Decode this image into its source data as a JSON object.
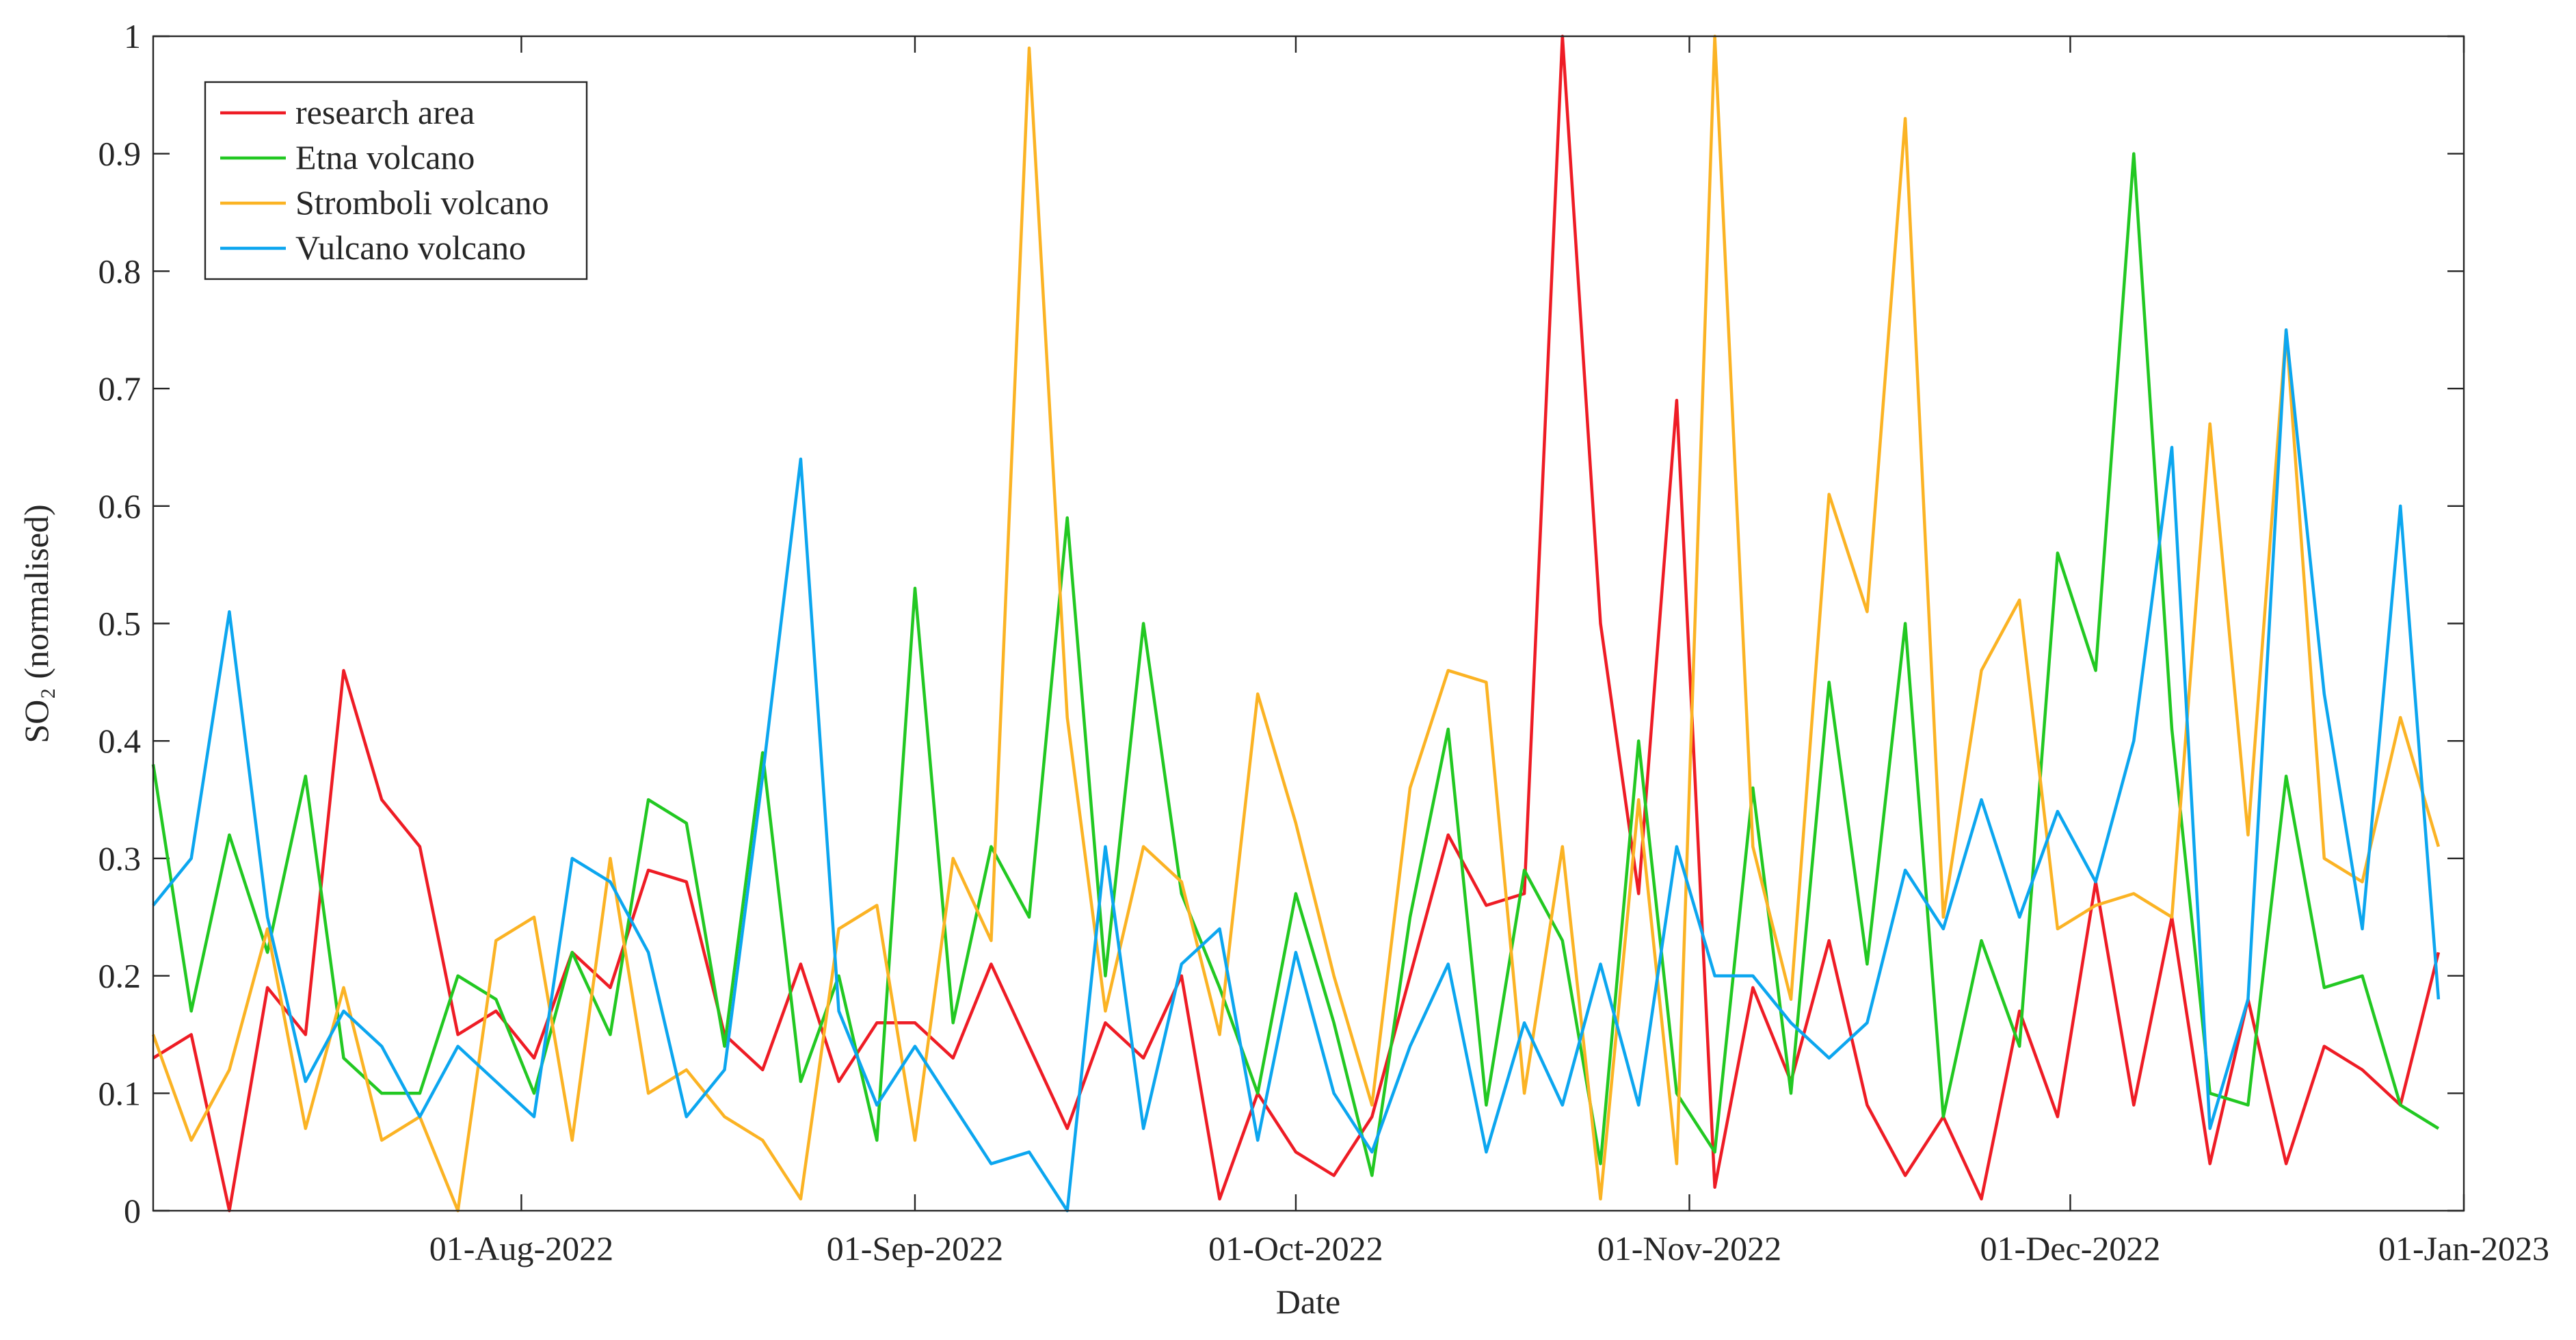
{
  "chart_data": {
    "type": "line",
    "xlabel": "Date",
    "ylabel": "SO₂ (normalised)",
    "x": [
      "2022-07-03",
      "2022-07-06",
      "2022-07-09",
      "2022-07-12",
      "2022-07-15",
      "2022-07-18",
      "2022-07-21",
      "2022-07-24",
      "2022-07-27",
      "2022-07-30",
      "2022-08-02",
      "2022-08-05",
      "2022-08-08",
      "2022-08-11",
      "2022-08-14",
      "2022-08-17",
      "2022-08-20",
      "2022-08-23",
      "2022-08-26",
      "2022-08-29",
      "2022-09-01",
      "2022-09-04",
      "2022-09-07",
      "2022-09-10",
      "2022-09-13",
      "2022-09-16",
      "2022-09-19",
      "2022-09-22",
      "2022-09-25",
      "2022-09-28",
      "2022-10-01",
      "2022-10-04",
      "2022-10-07",
      "2022-10-10",
      "2022-10-13",
      "2022-10-16",
      "2022-10-19",
      "2022-10-22",
      "2022-10-25",
      "2022-10-28",
      "2022-10-31",
      "2022-11-03",
      "2022-11-06",
      "2022-11-09",
      "2022-11-12",
      "2022-11-15",
      "2022-11-18",
      "2022-11-21",
      "2022-11-24",
      "2022-11-27",
      "2022-11-30",
      "2022-12-03",
      "2022-12-06",
      "2022-12-09",
      "2022-12-12",
      "2022-12-15",
      "2022-12-18",
      "2022-12-21",
      "2022-12-24",
      "2022-12-27",
      "2022-12-30"
    ],
    "series": [
      {
        "name": "research area",
        "color": "#ee1c25",
        "values": [
          0.13,
          0.15,
          0.0,
          0.19,
          0.15,
          0.46,
          0.35,
          0.31,
          0.15,
          0.17,
          0.13,
          0.22,
          0.19,
          0.29,
          0.28,
          0.15,
          0.12,
          0.21,
          0.11,
          0.16,
          0.16,
          0.13,
          0.21,
          0.14,
          0.07,
          0.16,
          0.13,
          0.2,
          0.01,
          0.1,
          0.05,
          0.03,
          0.08,
          0.2,
          0.32,
          0.26,
          0.27,
          1.0,
          0.5,
          0.27,
          0.69,
          0.02,
          0.19,
          0.11,
          0.23,
          0.09,
          0.03,
          0.08,
          0.01,
          0.17,
          0.08,
          0.28,
          0.09,
          0.25,
          0.04,
          0.18,
          0.04,
          0.14,
          0.12,
          0.09,
          0.22
        ]
      },
      {
        "name": "Etna volcano",
        "color": "#22c822",
        "values": [
          0.38,
          0.17,
          0.32,
          0.22,
          0.37,
          0.13,
          0.1,
          0.1,
          0.2,
          0.18,
          0.1,
          0.22,
          0.15,
          0.35,
          0.33,
          0.14,
          0.39,
          0.11,
          0.2,
          0.06,
          0.53,
          0.16,
          0.31,
          0.25,
          0.59,
          0.2,
          0.5,
          0.27,
          0.19,
          0.1,
          0.27,
          0.16,
          0.03,
          0.25,
          0.41,
          0.09,
          0.29,
          0.23,
          0.04,
          0.4,
          0.1,
          0.05,
          0.36,
          0.1,
          0.45,
          0.21,
          0.5,
          0.08,
          0.23,
          0.14,
          0.56,
          0.46,
          0.9,
          0.41,
          0.1,
          0.09,
          0.37,
          0.19,
          0.2,
          0.09,
          0.07
        ]
      },
      {
        "name": "Stromboli volcano",
        "color": "#fbb324",
        "values": [
          0.15,
          0.06,
          0.12,
          0.24,
          0.07,
          0.19,
          0.06,
          0.08,
          0.0,
          0.23,
          0.25,
          0.06,
          0.3,
          0.1,
          0.12,
          0.08,
          0.06,
          0.01,
          0.24,
          0.26,
          0.06,
          0.3,
          0.23,
          0.99,
          0.42,
          0.17,
          0.31,
          0.28,
          0.15,
          0.44,
          0.33,
          0.2,
          0.09,
          0.36,
          0.46,
          0.45,
          0.1,
          0.31,
          0.01,
          0.35,
          0.04,
          1.0,
          0.31,
          0.18,
          0.61,
          0.51,
          0.93,
          0.25,
          0.46,
          0.52,
          0.24,
          0.26,
          0.27,
          0.25,
          0.67,
          0.32,
          0.75,
          0.3,
          0.28,
          0.42,
          0.31
        ]
      },
      {
        "name": "Vulcano volcano",
        "color": "#0ca6ef",
        "values": [
          0.26,
          0.3,
          0.51,
          0.25,
          0.11,
          0.17,
          0.14,
          0.08,
          0.14,
          0.11,
          0.08,
          0.3,
          0.28,
          0.22,
          0.08,
          0.12,
          0.37,
          0.64,
          0.17,
          0.09,
          0.14,
          0.09,
          0.04,
          0.05,
          0.0,
          0.31,
          0.07,
          0.21,
          0.24,
          0.06,
          0.22,
          0.1,
          0.05,
          0.14,
          0.21,
          0.05,
          0.16,
          0.09,
          0.21,
          0.09,
          0.31,
          0.2,
          0.2,
          0.16,
          0.13,
          0.16,
          0.29,
          0.24,
          0.35,
          0.25,
          0.34,
          0.28,
          0.4,
          0.65,
          0.07,
          0.18,
          0.75,
          0.44,
          0.24,
          0.6,
          0.18
        ]
      }
    ],
    "xlim": [
      "2022-07-03",
      "2023-01-01"
    ],
    "xticks": [
      {
        "value": "2022-08-01",
        "label": "01-Aug-2022"
      },
      {
        "value": "2022-09-01",
        "label": "01-Sep-2022"
      },
      {
        "value": "2022-10-01",
        "label": "01-Oct-2022"
      },
      {
        "value": "2022-11-01",
        "label": "01-Nov-2022"
      },
      {
        "value": "2022-12-01",
        "label": "01-Dec-2022"
      },
      {
        "value": "2023-01-01",
        "label": "01-Jan-2023"
      }
    ],
    "ylim": [
      0,
      1
    ],
    "yticks": [
      0,
      0.1,
      0.2,
      0.3,
      0.4,
      0.5,
      0.6,
      0.7,
      0.8,
      0.9,
      1
    ],
    "grid": false,
    "legend": "upper left"
  }
}
